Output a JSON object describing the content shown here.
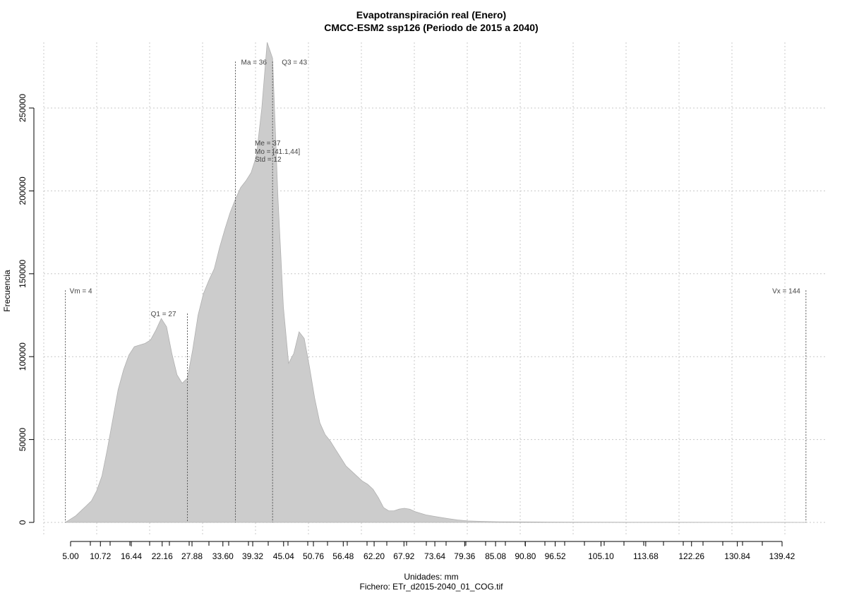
{
  "chart_data": {
    "type": "area",
    "title": "Evapotranspiración real (Enero)",
    "subtitle": "CMCC-ESM2 ssp126 (Periodo de 2015 a 2040)",
    "xlabel": "Unidades: mm",
    "file_label": "Fichero: ETr_d2015-2040_01_COG.tif",
    "ylabel": "Frecuencia",
    "x_ticks": [
      5.0,
      10.72,
      16.44,
      22.16,
      27.88,
      33.6,
      39.32,
      45.04,
      50.76,
      56.48,
      62.2,
      67.92,
      73.64,
      79.36,
      85.08,
      90.8,
      96.52,
      105.1,
      113.68,
      122.26,
      130.84,
      139.42
    ],
    "x_tick_labels": [
      "5.00",
      "10.72",
      "16.44",
      "22.16",
      "27.88",
      "33.60",
      "39.32",
      "45.04",
      "50.76",
      "56.48",
      "62.20",
      "67.92",
      "73.64",
      "79.36",
      "85.08",
      "90.80",
      "96.52",
      "105.10",
      "113.68",
      "122.26",
      "130.84",
      "139.42"
    ],
    "y_ticks": [
      0,
      50000,
      100000,
      150000,
      200000,
      250000
    ],
    "y_tick_labels": [
      "0",
      "50000",
      "100000",
      "150000",
      "200000",
      "250000"
    ],
    "xlim": [
      0,
      145
    ],
    "ylim": [
      -8000,
      290000
    ],
    "grid": true,
    "fill_color": "#cccccc",
    "x": [
      4,
      5,
      6,
      7,
      8,
      9,
      10,
      11,
      12,
      13,
      14,
      15,
      16,
      17,
      18,
      19,
      20,
      21,
      22,
      23,
      24,
      25,
      26,
      27,
      28,
      29,
      30,
      31,
      32,
      33,
      34,
      35,
      36,
      37,
      38,
      39,
      40,
      41,
      42,
      43,
      44,
      45,
      46,
      47,
      48,
      49,
      50,
      51,
      52,
      53,
      54,
      55,
      56,
      57,
      58,
      59,
      60,
      61,
      62,
      63,
      64,
      65,
      66,
      67,
      68,
      69,
      70,
      72,
      74,
      76,
      78,
      80,
      83,
      86,
      90,
      95,
      100,
      110,
      120,
      130,
      140,
      144
    ],
    "values": [
      0,
      2000,
      4000,
      7000,
      10000,
      13000,
      19000,
      28000,
      44000,
      62000,
      80000,
      92000,
      101000,
      106000,
      107000,
      108000,
      110000,
      116000,
      123000,
      118000,
      102000,
      89000,
      84000,
      87000,
      104000,
      125000,
      138000,
      146000,
      153000,
      166000,
      177000,
      187000,
      195000,
      202000,
      206000,
      211000,
      221000,
      250000,
      290000,
      280000,
      196000,
      130000,
      96000,
      102000,
      115000,
      111000,
      94000,
      75000,
      60000,
      53000,
      49000,
      44000,
      39000,
      34000,
      31000,
      28000,
      25000,
      23000,
      20000,
      15000,
      9000,
      7000,
      7000,
      8000,
      8500,
      8000,
      6500,
      4500,
      3400,
      2400,
      1500,
      900,
      600,
      400,
      300,
      200,
      150,
      100,
      80,
      60,
      40,
      0
    ],
    "annotations": {
      "vm": {
        "label": "Vm = 4",
        "x": 4,
        "y_top": 140000
      },
      "q1": {
        "label": "Q1 = 27",
        "x": 27,
        "y_top": 126000
      },
      "ma": {
        "label": "Ma = 36",
        "x": 36,
        "y_top": 278000
      },
      "q3": {
        "label": "Q3 = 43",
        "x": 43,
        "y_top": 278000
      },
      "vx": {
        "label": "Vx = 144",
        "x": 144,
        "y_top": 140000
      },
      "stats": [
        "Me = 37",
        "Mo = [41.1,44]",
        "Std = 12"
      ]
    }
  }
}
